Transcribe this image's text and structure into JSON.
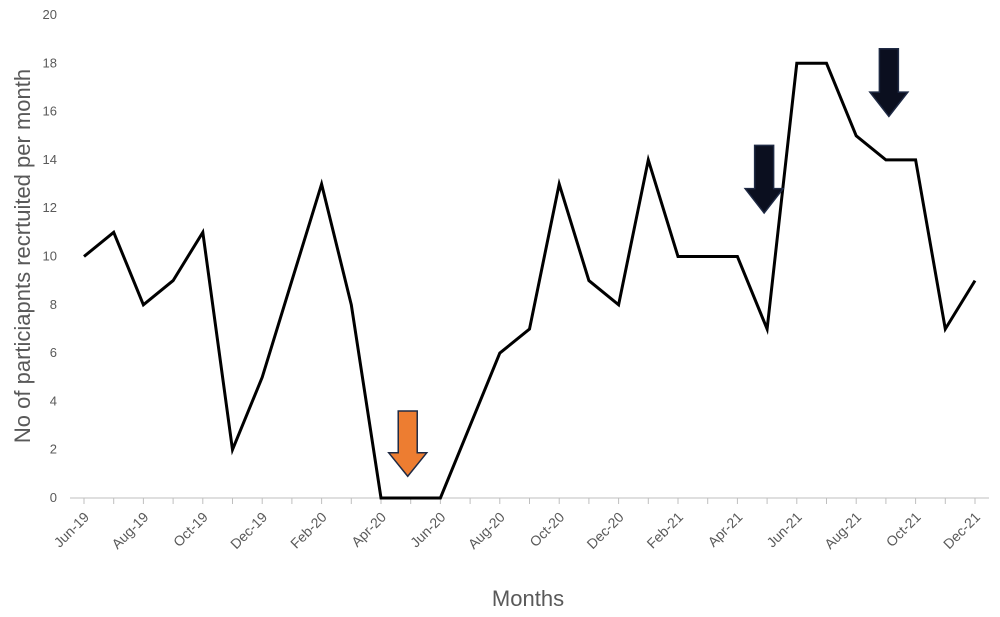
{
  "chart_data": {
    "type": "line",
    "title": "",
    "xlabel": "Months",
    "ylabel": "No of particiapnts recrtuited per month",
    "ylim": [
      0,
      20
    ],
    "yticks": [
      0,
      2,
      4,
      6,
      8,
      10,
      12,
      14,
      16,
      18,
      20
    ],
    "x": [
      "Jun-19",
      "Jul-19",
      "Aug-19",
      "Sep-19",
      "Oct-19",
      "Nov-19",
      "Dec-19",
      "Jan-20",
      "Feb-20",
      "Mar-20",
      "Apr-20",
      "May-20",
      "Jun-20",
      "Jul-20",
      "Aug-20",
      "Sep-20",
      "Oct-20",
      "Nov-20",
      "Dec-20",
      "Jan-21",
      "Feb-21",
      "Mar-21",
      "Apr-21",
      "May-21",
      "Jun-21",
      "Jul-21",
      "Aug-21",
      "Sep-21",
      "Oct-21",
      "Nov-21",
      "Dec-21"
    ],
    "x_tick_labels": [
      "Jun-19",
      "Aug-19",
      "Oct-19",
      "Dec-19",
      "Feb-20",
      "Apr-20",
      "Jun-20",
      "Aug-20",
      "Oct-20",
      "Dec-20",
      "Feb-21",
      "Apr-21",
      "Jun-21",
      "Aug-21",
      "Oct-21",
      "Dec-21"
    ],
    "series": [
      {
        "values": [
          10,
          11,
          8,
          9,
          11,
          2,
          5,
          9,
          13,
          8,
          0,
          0,
          0,
          3,
          6,
          7,
          13,
          9,
          8,
          14,
          10,
          10,
          10,
          7,
          18,
          18,
          15,
          14,
          14,
          7,
          9
        ],
        "color": "#000000"
      }
    ],
    "grid": false,
    "legend": "none",
    "annotations": [
      {
        "type": "arrow-down",
        "color": "#ed7d31",
        "x_index": 10.9,
        "y_top": 3.6,
        "y_bottom": 0.9
      },
      {
        "type": "arrow-down",
        "color": "#0b0f1f",
        "x_index": 22.9,
        "y_top": 14.6,
        "y_bottom": 11.8
      },
      {
        "type": "arrow-down",
        "color": "#0b0f1f",
        "x_index": 27.1,
        "y_top": 18.6,
        "y_bottom": 15.8
      }
    ]
  }
}
